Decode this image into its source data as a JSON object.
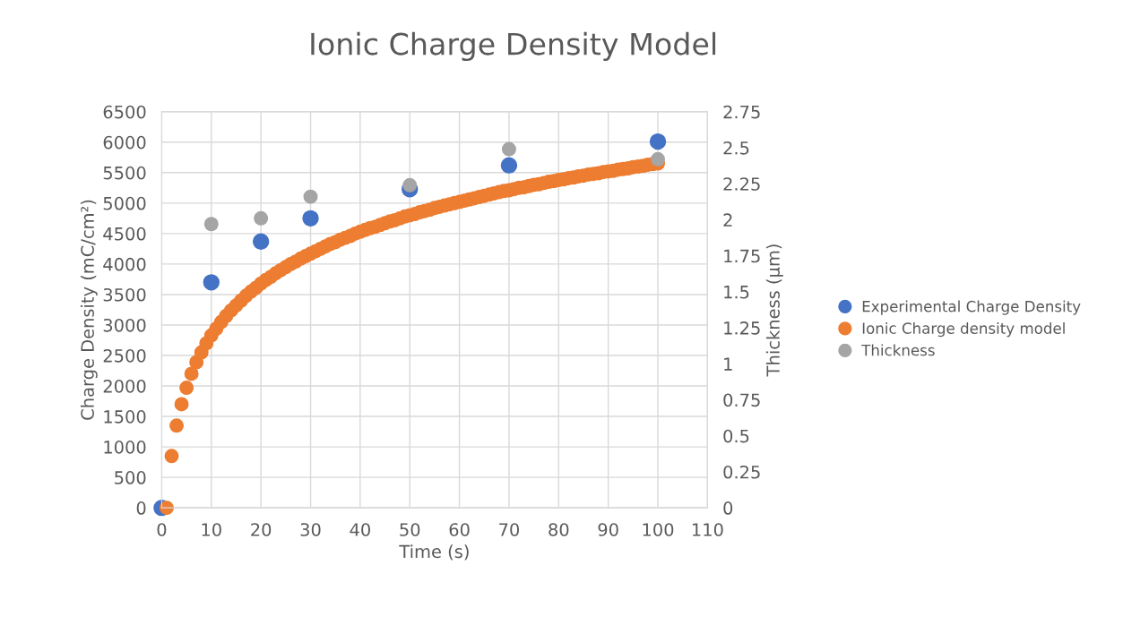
{
  "chart_data": {
    "type": "scatter",
    "title": "Ionic Charge Density Model",
    "xlabel": "Time (s)",
    "ylabel": "Charge Density (mC/cm²)",
    "y2label": "Thickness (µm)",
    "xlim": [
      0,
      110
    ],
    "xticks": [
      0,
      10,
      20,
      30,
      40,
      50,
      60,
      70,
      80,
      90,
      100,
      110
    ],
    "ylim": [
      0,
      6500
    ],
    "yticks": [
      0,
      500,
      1000,
      1500,
      2000,
      2500,
      3000,
      3500,
      4000,
      4500,
      5000,
      5500,
      6000,
      6500
    ],
    "y2lim": [
      0,
      2.75
    ],
    "y2ticks": [
      0,
      0.25,
      0.5,
      0.75,
      1,
      1.25,
      1.5,
      1.75,
      2,
      2.25,
      2.5,
      2.75
    ],
    "grid": true,
    "legend": "right",
    "marker": "circle",
    "series": [
      {
        "name": "Experimental Charge Density",
        "color": "#4472c4",
        "x": [
          0,
          10,
          20,
          30,
          50,
          70,
          100
        ],
        "values": [
          0,
          3700,
          4370,
          4750,
          5230,
          5620,
          6010
        ]
      },
      {
        "name": "Ionic Charge density model",
        "color": "#ed7d31",
        "x": [
          1,
          2,
          3,
          4,
          5,
          6,
          7,
          8,
          9,
          10,
          11,
          12,
          13,
          14,
          15,
          16,
          17,
          18,
          19,
          20,
          21,
          22,
          23,
          24,
          25,
          26,
          27,
          28,
          29,
          30,
          31,
          32,
          33,
          34,
          35,
          36,
          37,
          38,
          39,
          40,
          41,
          42,
          43,
          44,
          45,
          46,
          47,
          48,
          49,
          50,
          51,
          52,
          53,
          54,
          55,
          56,
          57,
          58,
          59,
          60,
          61,
          62,
          63,
          64,
          65,
          66,
          67,
          68,
          69,
          70,
          71,
          72,
          73,
          74,
          75,
          76,
          77,
          78,
          79,
          80,
          81,
          82,
          83,
          84,
          85,
          86,
          87,
          88,
          89,
          90,
          91,
          92,
          93,
          94,
          95,
          96,
          97,
          98,
          99,
          100
        ],
        "values": [
          0,
          850,
          1350,
          1700,
          1970,
          2200,
          2390,
          2550,
          2700,
          2830,
          2940,
          3050,
          3150,
          3240,
          3320,
          3400,
          3480,
          3550,
          3610,
          3680,
          3740,
          3790,
          3850,
          3900,
          3950,
          4000,
          4040,
          4090,
          4130,
          4170,
          4210,
          4250,
          4290,
          4330,
          4360,
          4400,
          4430,
          4460,
          4500,
          4530,
          4560,
          4590,
          4610,
          4640,
          4670,
          4700,
          4720,
          4750,
          4780,
          4800,
          4820,
          4850,
          4870,
          4890,
          4920,
          4940,
          4960,
          4980,
          5000,
          5020,
          5040,
          5060,
          5080,
          5100,
          5120,
          5140,
          5160,
          5180,
          5200,
          5210,
          5230,
          5250,
          5260,
          5280,
          5300,
          5310,
          5330,
          5350,
          5360,
          5380,
          5390,
          5410,
          5420,
          5440,
          5450,
          5470,
          5480,
          5490,
          5510,
          5520,
          5530,
          5550,
          5560,
          5570,
          5590,
          5600,
          5610,
          5630,
          5640,
          5650
        ]
      },
      {
        "name": "Thickness",
        "color": "#a5a5a5",
        "axis": "y2",
        "x": [
          10,
          20,
          30,
          50,
          70,
          100
        ],
        "values": [
          1.97,
          2.01,
          2.16,
          2.24,
          2.49,
          2.42
        ]
      }
    ]
  }
}
